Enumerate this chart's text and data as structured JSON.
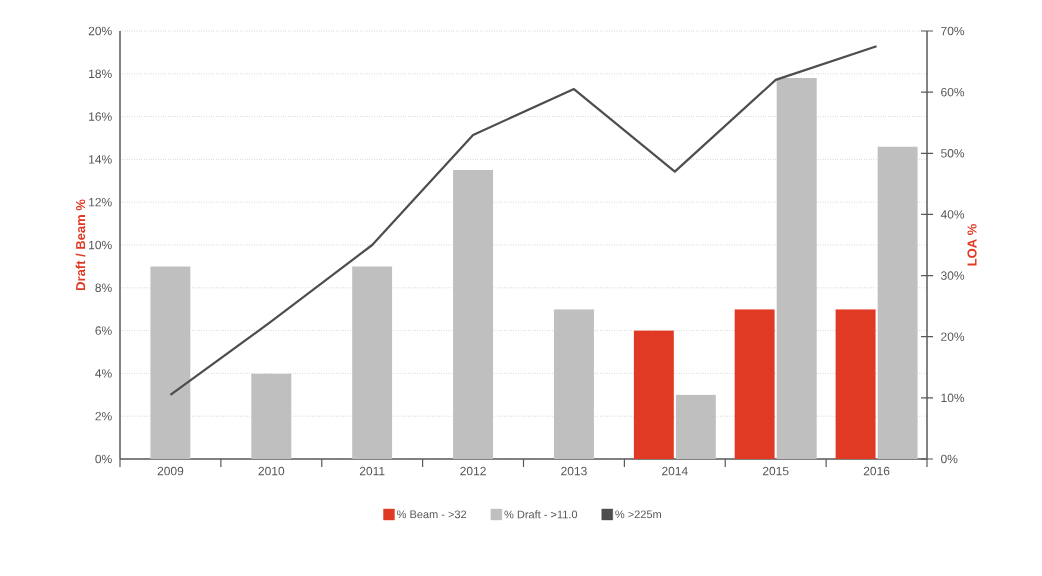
{
  "chart_data": {
    "type": "bar",
    "categories": [
      "2009",
      "2010",
      "2011",
      "2012",
      "2013",
      "2014",
      "2015",
      "2016"
    ],
    "ylabel": "Draft / Beam %",
    "y2label": "LOA %",
    "ylim": [
      0,
      20
    ],
    "yticks": [
      {
        "value": 0,
        "label": "0%"
      },
      {
        "value": 2,
        "label": "2%"
      },
      {
        "value": 4,
        "label": "4%"
      },
      {
        "value": 6,
        "label": "6%"
      },
      {
        "value": 8,
        "label": "8%"
      },
      {
        "value": 10,
        "label": "10%"
      },
      {
        "value": 12,
        "label": "12%"
      },
      {
        "value": 14,
        "label": "14%"
      },
      {
        "value": 16,
        "label": "16%"
      },
      {
        "value": 18,
        "label": "18%"
      },
      {
        "value": 20,
        "label": "20%"
      }
    ],
    "y2lim": [
      0,
      70
    ],
    "y2ticks": [
      {
        "value": 0,
        "label": "0%"
      },
      {
        "value": 10,
        "label": "10%"
      },
      {
        "value": 20,
        "label": "20%"
      },
      {
        "value": 30,
        "label": "30%"
      },
      {
        "value": 40,
        "label": "40%"
      },
      {
        "value": 50,
        "label": "50%"
      },
      {
        "value": 60,
        "label": "60%"
      },
      {
        "value": 70,
        "label": "70%"
      }
    ],
    "grid": "y",
    "legend": "bottom",
    "series": [
      {
        "name": "% Beam - >32",
        "color": "#e03a24",
        "values": [
          null,
          null,
          null,
          null,
          null,
          6,
          7,
          7
        ]
      },
      {
        "name": "% Draft - >11.0",
        "color": "#bfbfbf",
        "values": [
          9,
          4,
          9,
          13.5,
          7,
          3,
          17.8,
          14.6
        ]
      },
      {
        "name": "% >225m",
        "type": "line",
        "axis": "y2",
        "color": "#4d4d4d",
        "values": [
          10.5,
          22.5,
          35,
          53,
          60.5,
          47,
          62,
          67.5
        ]
      }
    ]
  }
}
